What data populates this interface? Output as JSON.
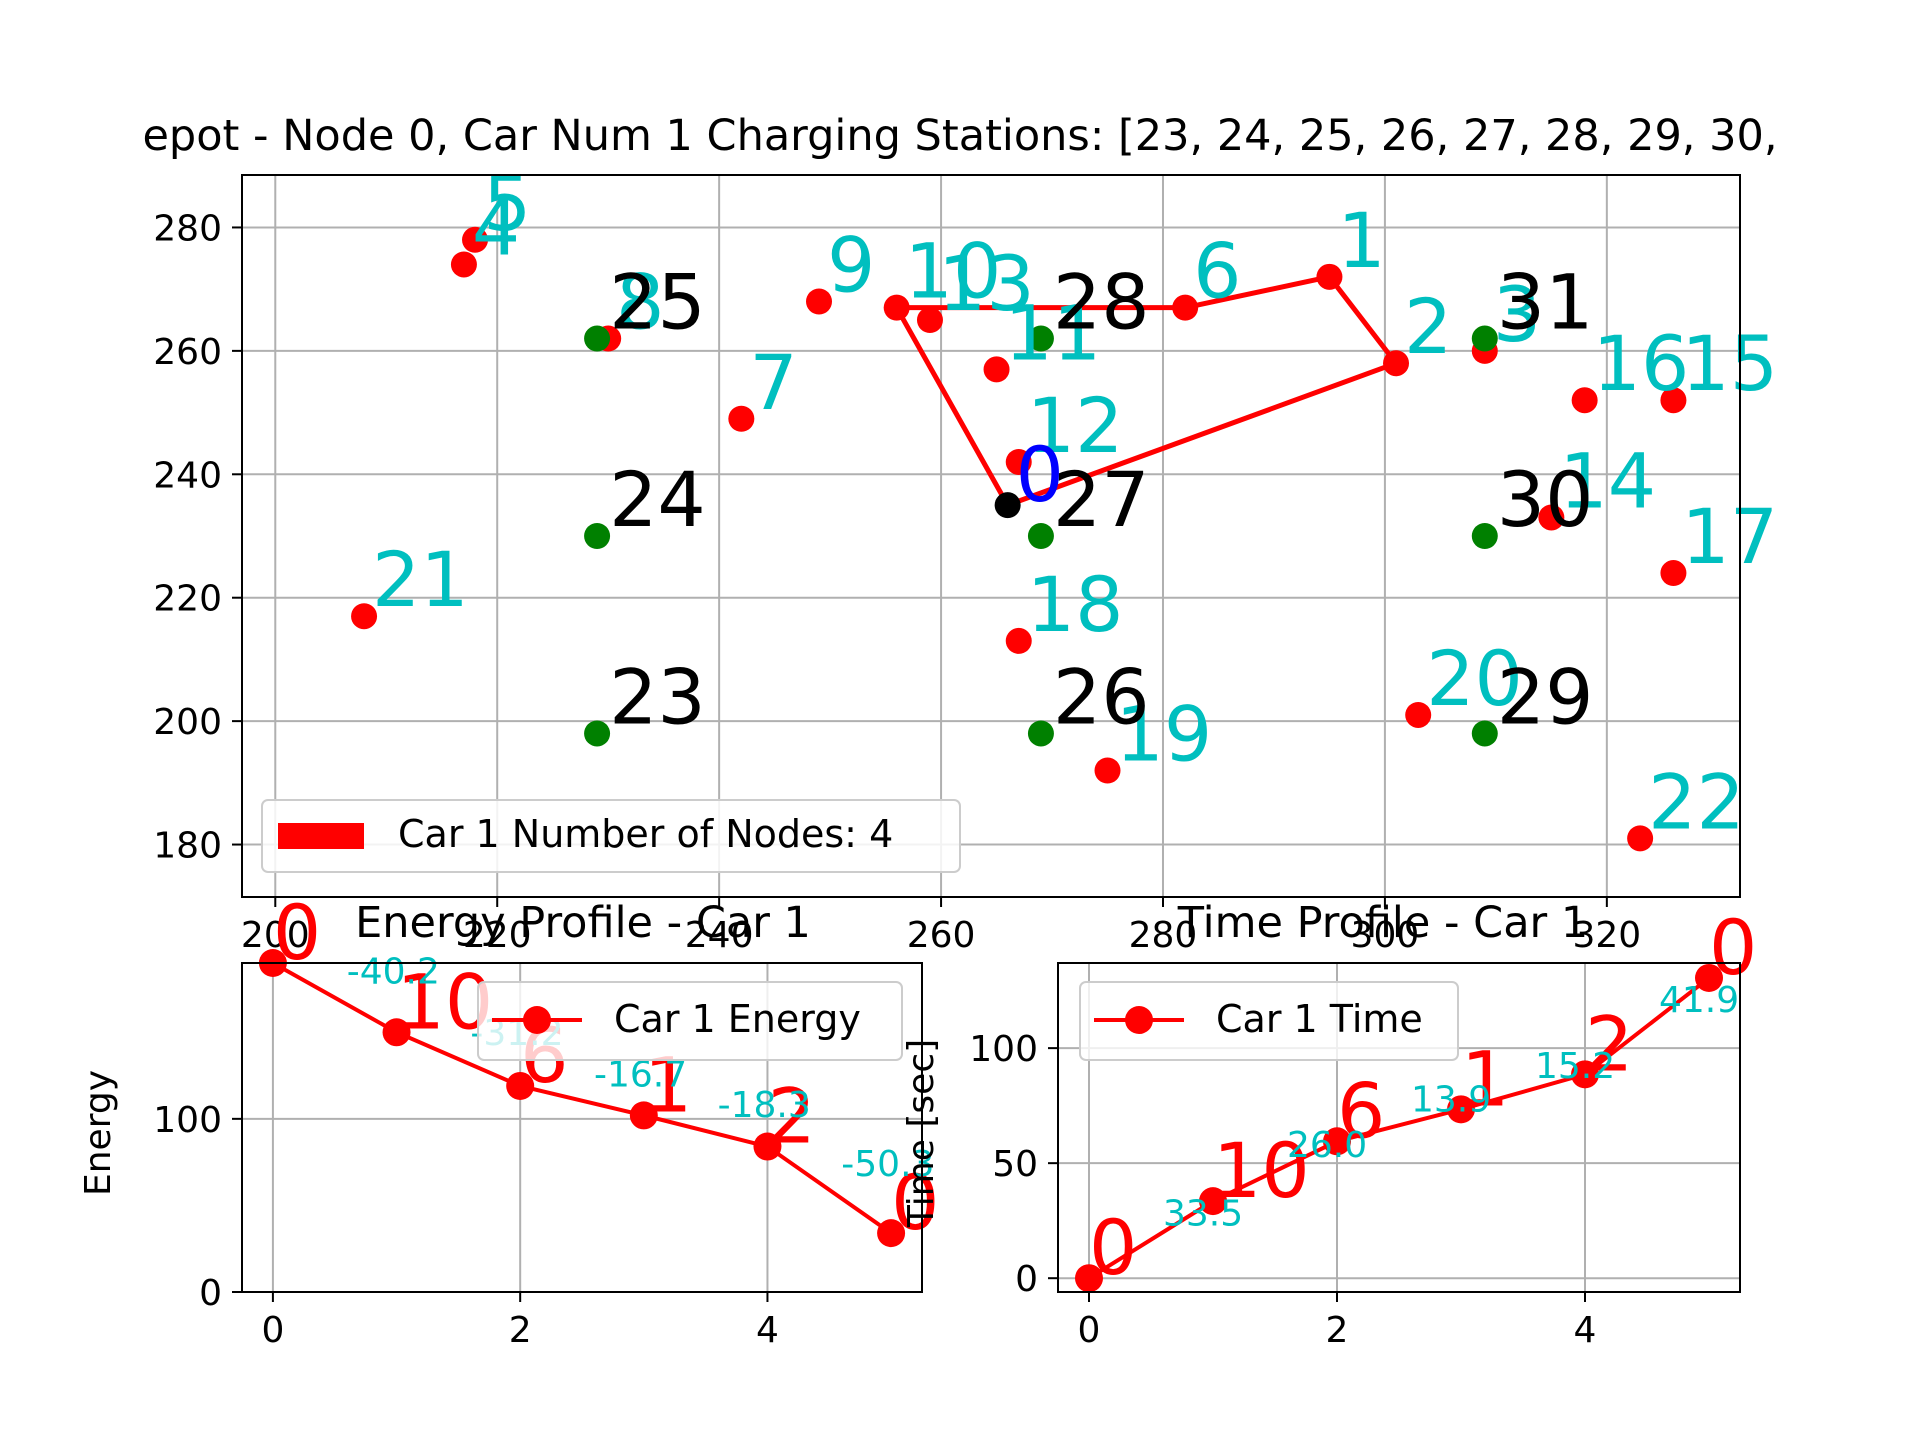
{
  "chart_data": [
    {
      "type": "scatter",
      "title": "epot - Node 0, Car Num 1 Charging Stations: [23, 24, 25, 26, 27, 28, 29, 30,",
      "xlim": [
        197,
        332
      ],
      "ylim": [
        171.5,
        288.5
      ],
      "xticks": [
        200,
        220,
        240,
        260,
        280,
        300,
        320
      ],
      "yticks": [
        180,
        200,
        220,
        240,
        260,
        280
      ],
      "grid": true,
      "legend": {
        "location": "lower-left",
        "entries": [
          {
            "label": "Car 1 Number of Nodes: 4",
            "color": "#ff0000"
          }
        ]
      },
      "depot": {
        "id": "0",
        "x": 266,
        "y": 235
      },
      "customers": [
        {
          "id": "1",
          "x": 295,
          "y": 272
        },
        {
          "id": "2",
          "x": 301,
          "y": 258
        },
        {
          "id": "3",
          "x": 309,
          "y": 260
        },
        {
          "id": "4",
          "x": 217,
          "y": 274
        },
        {
          "id": "5",
          "x": 218,
          "y": 278
        },
        {
          "id": "6",
          "x": 282,
          "y": 267
        },
        {
          "id": "7",
          "x": 242,
          "y": 249
        },
        {
          "id": "8",
          "x": 230,
          "y": 262
        },
        {
          "id": "9",
          "x": 249,
          "y": 268
        },
        {
          "id": "10",
          "x": 256,
          "y": 267
        },
        {
          "id": "11",
          "x": 265,
          "y": 257
        },
        {
          "id": "12",
          "x": 267,
          "y": 242
        },
        {
          "id": "13",
          "x": 259,
          "y": 265
        },
        {
          "id": "14",
          "x": 315,
          "y": 233
        },
        {
          "id": "15",
          "x": 326,
          "y": 252
        },
        {
          "id": "16",
          "x": 318,
          "y": 252
        },
        {
          "id": "17",
          "x": 326,
          "y": 224
        },
        {
          "id": "18",
          "x": 267,
          "y": 213
        },
        {
          "id": "19",
          "x": 275,
          "y": 192
        },
        {
          "id": "20",
          "x": 303,
          "y": 201
        },
        {
          "id": "21",
          "x": 208,
          "y": 217
        },
        {
          "id": "22",
          "x": 323,
          "y": 181
        }
      ],
      "stations": [
        {
          "id": "23",
          "x": 229,
          "y": 198
        },
        {
          "id": "24",
          "x": 229,
          "y": 230
        },
        {
          "id": "25",
          "x": 229,
          "y": 262
        },
        {
          "id": "26",
          "x": 269,
          "y": 198
        },
        {
          "id": "27",
          "x": 269,
          "y": 230
        },
        {
          "id": "28",
          "x": 269,
          "y": 262
        },
        {
          "id": "29",
          "x": 309,
          "y": 198
        },
        {
          "id": "30",
          "x": 309,
          "y": 230
        },
        {
          "id": "31",
          "x": 309,
          "y": 262
        }
      ],
      "route": [
        {
          "x": 266,
          "y": 235
        },
        {
          "x": 256,
          "y": 267
        },
        {
          "x": 282,
          "y": 267
        },
        {
          "x": 295,
          "y": 272
        },
        {
          "x": 301,
          "y": 258
        },
        {
          "x": 266,
          "y": 235
        }
      ],
      "colors": {
        "customer": "#ff0000",
        "station": "#008000",
        "depot": "#000000",
        "route": "#ff0000",
        "customer_label": "#00bfbf",
        "station_label": "#000000",
        "depot_label": "#0000ff"
      }
    },
    {
      "type": "line",
      "title": "Energy Profile - Car 1",
      "xlabel": "",
      "ylabel": "Energy",
      "xlim": [
        -0.25,
        5.25
      ],
      "ylim": [
        0,
        190
      ],
      "xticks": [
        0,
        2,
        4
      ],
      "yticks": [
        0,
        100
      ],
      "grid": true,
      "legend": {
        "location": "upper-right",
        "entries": [
          {
            "label": "Car 1 Energy",
            "color": "#ff0000"
          }
        ]
      },
      "series": [
        {
          "name": "Car 1 Energy",
          "x": [
            0,
            1,
            2,
            3,
            4,
            5
          ],
          "values": [
            190,
            150,
            119,
            102,
            84,
            34
          ]
        }
      ],
      "point_labels": [
        "0",
        "10",
        "6",
        "1",
        "2",
        "0"
      ],
      "segment_labels": [
        "-40.2",
        "-31.2",
        "-16.7",
        "-18.3",
        "-50.3"
      ]
    },
    {
      "type": "line",
      "title": "Time Profile - Car 1",
      "xlabel": "",
      "ylabel": "Time [sec]",
      "xlim": [
        -0.25,
        5.25
      ],
      "ylim": [
        -6,
        137
      ],
      "xticks": [
        0,
        2,
        4
      ],
      "yticks": [
        0,
        50,
        100
      ],
      "grid": true,
      "legend": {
        "location": "upper-left",
        "entries": [
          {
            "label": "Car 1 Time",
            "color": "#ff0000"
          }
        ]
      },
      "series": [
        {
          "name": "Car 1 Time",
          "x": [
            0,
            1,
            2,
            3,
            4,
            5
          ],
          "values": [
            0,
            33.5,
            59.5,
            73.4,
            88.6,
            130.5
          ]
        }
      ],
      "point_labels": [
        "0",
        "10",
        "6",
        "1",
        "2",
        "0"
      ],
      "segment_labels": [
        "33.5",
        "26.0",
        "13.9",
        "15.2",
        "41.9"
      ]
    }
  ]
}
